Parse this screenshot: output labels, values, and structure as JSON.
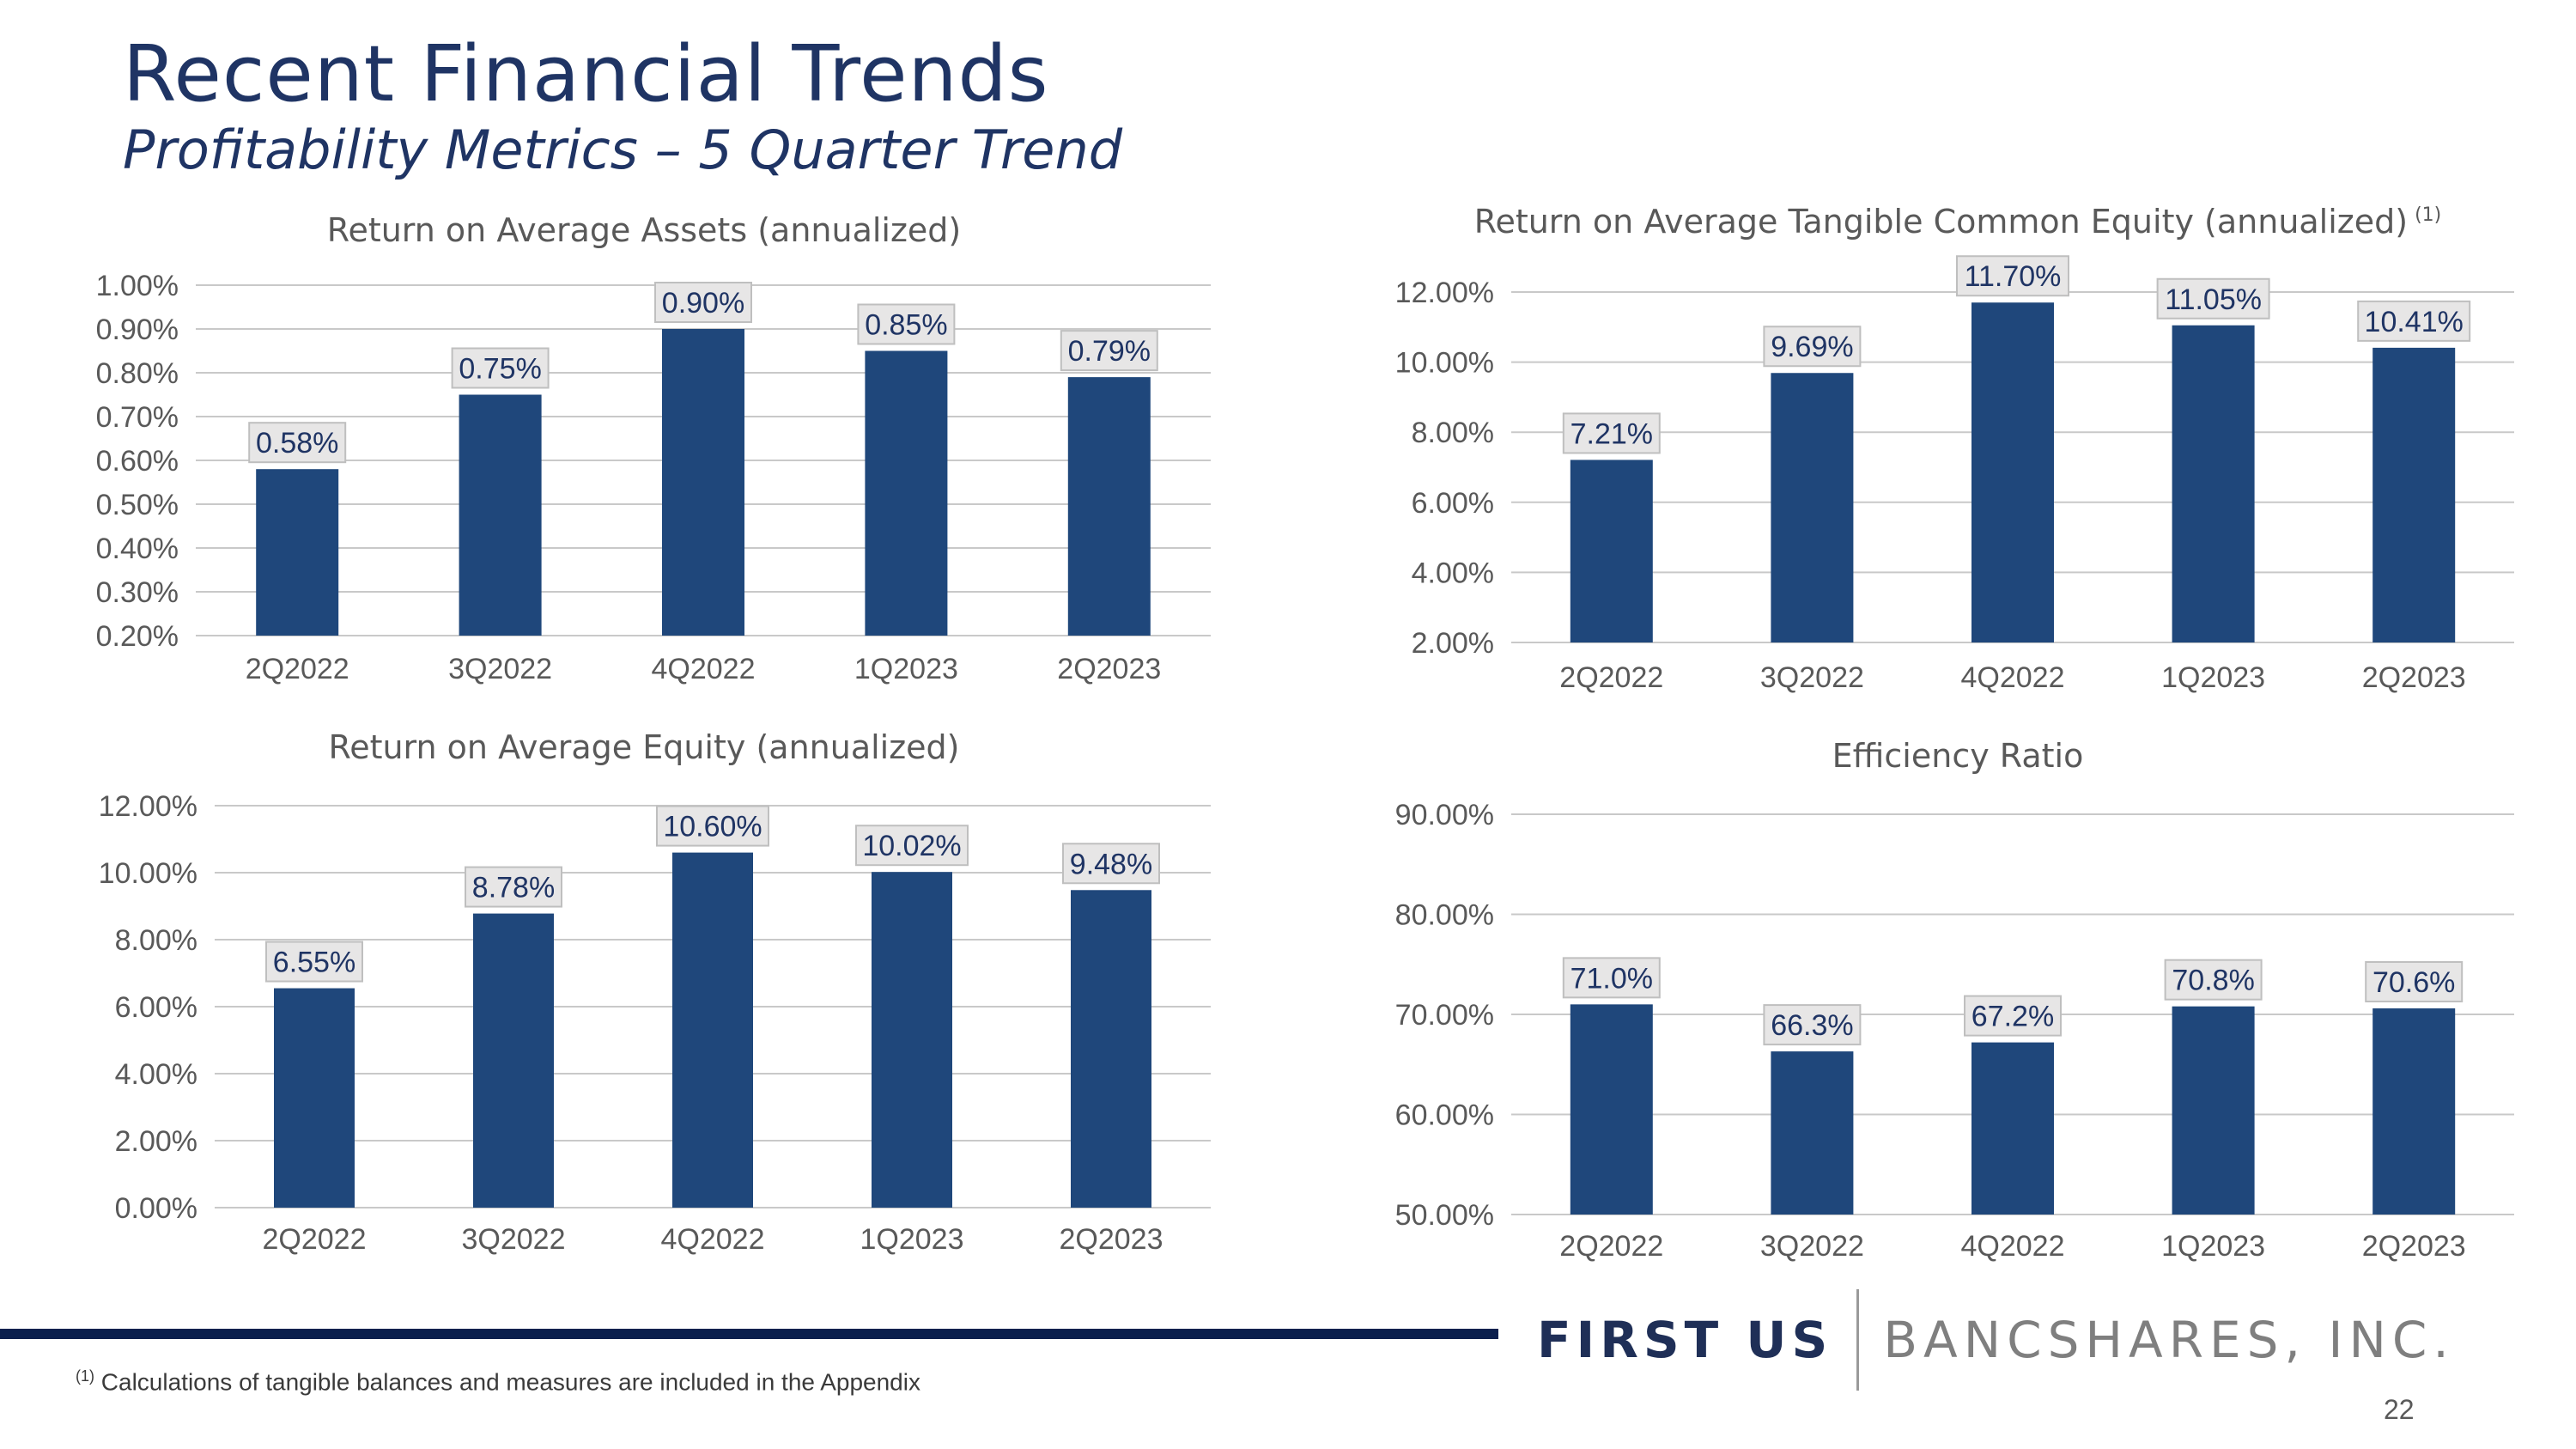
{
  "header": {
    "title": "Recent Financial Trends",
    "subtitle": "Profitability Metrics – 5 Quarter Trend"
  },
  "colors": {
    "bar": "#1f477b",
    "title": "#1f3464",
    "rule": "#0b1f4d"
  },
  "chart_data": [
    {
      "type": "bar",
      "title": "Return on Average Assets (annualized)",
      "categories": [
        "2Q2022",
        "3Q2022",
        "4Q2022",
        "1Q2023",
        "2Q2023"
      ],
      "values": [
        0.58,
        0.75,
        0.9,
        0.85,
        0.79
      ],
      "data_labels": [
        "0.58%",
        "0.75%",
        "0.90%",
        "0.85%",
        "0.79%"
      ],
      "y_ticks": [
        "1.00%",
        "0.90%",
        "0.80%",
        "0.70%",
        "0.60%",
        "0.50%",
        "0.40%",
        "0.30%",
        "0.20%"
      ],
      "ylim": [
        0.2,
        1.0
      ],
      "xlabel": "",
      "ylabel": "",
      "grid": true
    },
    {
      "type": "bar",
      "title": "Return on Average Tangible Common Equity (annualized)",
      "title_note": "(1)",
      "categories": [
        "2Q2022",
        "3Q2022",
        "4Q2022",
        "1Q2023",
        "2Q2023"
      ],
      "values": [
        7.21,
        9.69,
        11.7,
        11.05,
        10.41
      ],
      "data_labels": [
        "7.21%",
        "9.69%",
        "11.70%",
        "11.05%",
        "10.41%"
      ],
      "y_ticks": [
        "12.00%",
        "10.00%",
        "8.00%",
        "6.00%",
        "4.00%",
        "2.00%"
      ],
      "ylim": [
        2,
        12
      ],
      "xlabel": "",
      "ylabel": "",
      "grid": true
    },
    {
      "type": "bar",
      "title": "Return on Average Equity (annualized)",
      "categories": [
        "2Q2022",
        "3Q2022",
        "4Q2022",
        "1Q2023",
        "2Q2023"
      ],
      "values": [
        6.55,
        8.78,
        10.6,
        10.02,
        9.48
      ],
      "data_labels": [
        "6.55%",
        "8.78%",
        "10.60%",
        "10.02%",
        "9.48%"
      ],
      "y_ticks": [
        "12.00%",
        "10.00%",
        "8.00%",
        "6.00%",
        "4.00%",
        "2.00%",
        "0.00%"
      ],
      "ylim": [
        0,
        12
      ],
      "xlabel": "",
      "ylabel": "",
      "grid": true
    },
    {
      "type": "bar",
      "title": "Efficiency Ratio",
      "categories": [
        "2Q2022",
        "3Q2022",
        "4Q2022",
        "1Q2023",
        "2Q2023"
      ],
      "values": [
        71.0,
        66.3,
        67.2,
        70.8,
        70.6
      ],
      "data_labels": [
        "71.0%",
        "66.3%",
        "67.2%",
        "70.8%",
        "70.6%"
      ],
      "y_ticks": [
        "90.00%",
        "80.00%",
        "70.00%",
        "60.00%",
        "50.00%"
      ],
      "ylim": [
        50,
        90
      ],
      "xlabel": "",
      "ylabel": "",
      "grid": true
    }
  ],
  "footer": {
    "brand_left": "FIRST US",
    "brand_right": "BANCSHARES, INC.",
    "footnote_marker": "(1)",
    "footnote_text": "Calculations of tangible balances and measures are included in the Appendix",
    "page_number": "22"
  }
}
